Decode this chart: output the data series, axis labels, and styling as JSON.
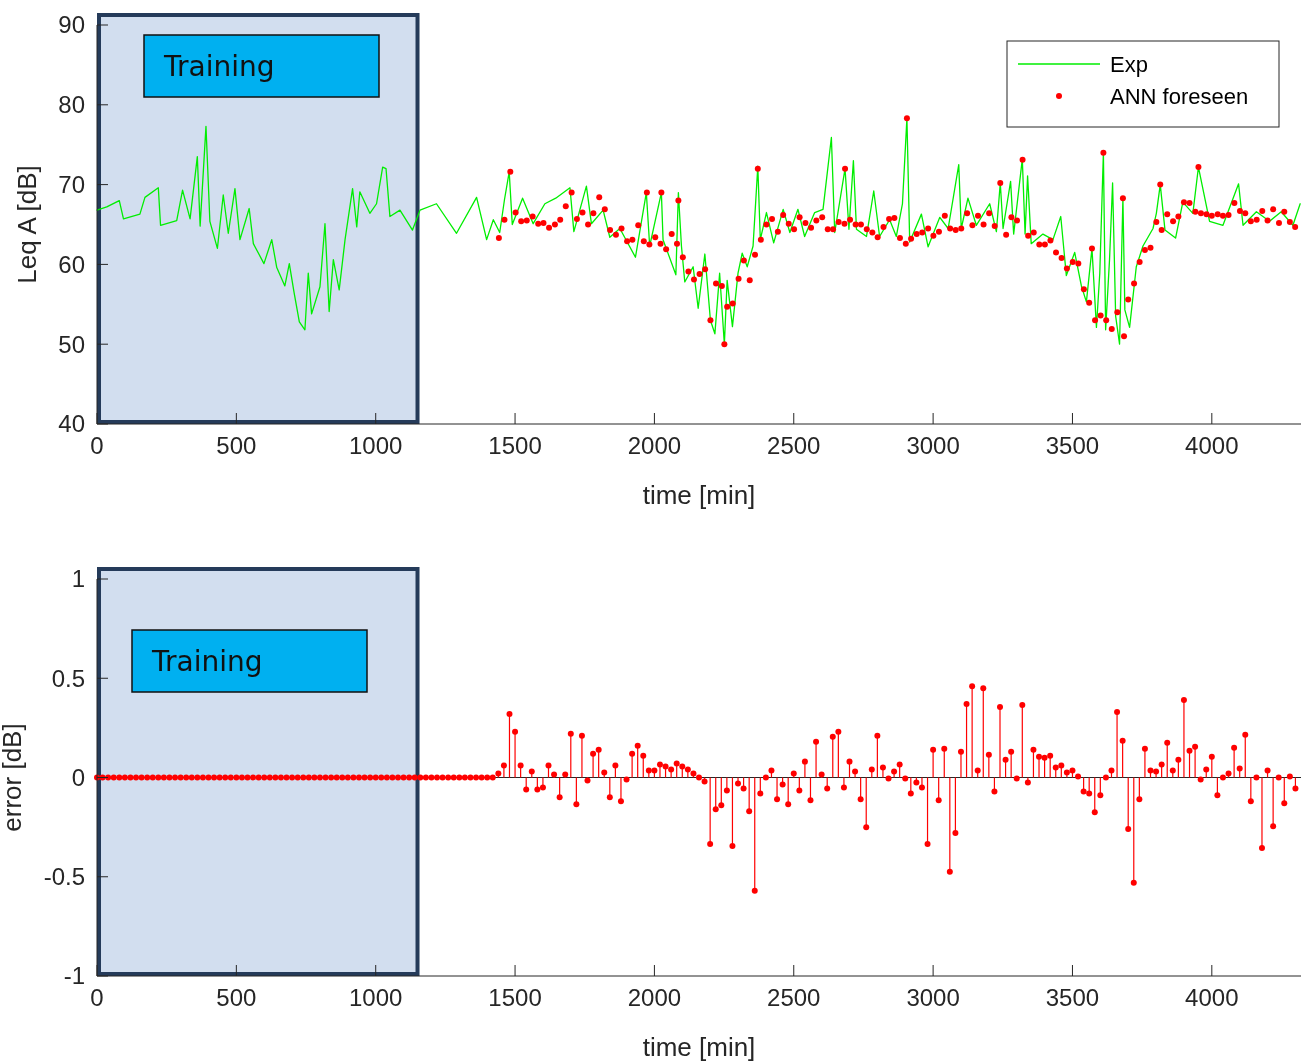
{
  "chart_data": [
    {
      "type": "line",
      "xlabel": "time [min]",
      "ylabel": "Leq A [dB]",
      "xlim": [
        0,
        4320
      ],
      "ylim": [
        40,
        90
      ],
      "xticks": [
        0,
        500,
        1000,
        1500,
        2000,
        2500,
        3000,
        3500,
        4000
      ],
      "yticks": [
        40,
        50,
        60,
        70,
        80,
        90
      ],
      "legend": "top right",
      "bands": [
        {
          "axis": "x",
          "from": 0,
          "to": 1150,
          "label": "Training",
          "color": "#d2deef"
        }
      ],
      "series": [
        {
          "name": "Exp",
          "color": "#00ee00",
          "x": [
            0,
            35,
            80,
            95,
            154,
            172,
            220,
            228,
            286,
            307,
            334,
            360,
            370,
            391,
            405,
            432,
            453,
            471,
            495,
            513,
            546,
            561,
            599,
            627,
            645,
            674,
            690,
            707,
            726,
            746,
            758,
            770,
            800,
            818,
            833,
            848,
            869,
            890,
            917,
            932,
            943,
            979,
            1003,
            1025,
            1037,
            1051,
            1087,
            1132,
            1159,
            1218,
            1290,
            1362,
            1398,
            1422,
            1445,
            1462,
            1479,
            1490,
            1527,
            1565,
            1607,
            1646,
            1697,
            1711,
            1756,
            1774,
            1816,
            1840,
            1876,
            1932,
            1971,
            1983,
            2025,
            2031,
            2077,
            2086,
            2097,
            2109,
            2139,
            2157,
            2181,
            2201,
            2217,
            2234,
            2251,
            2261,
            2280,
            2300,
            2315,
            2333,
            2354,
            2371,
            2380,
            2402,
            2428,
            2462,
            2486,
            2515,
            2539,
            2575,
            2605,
            2635,
            2647,
            2684,
            2698,
            2714,
            2725,
            2761,
            2787,
            2808,
            2844,
            2868,
            2890,
            2906,
            2916,
            2958,
            2982,
            3024,
            3054,
            3092,
            3101,
            3125,
            3155,
            3203,
            3227,
            3241,
            3251,
            3278,
            3289,
            3320,
            3330,
            3339,
            3352,
            3394,
            3430,
            3458,
            3478,
            3508,
            3532,
            3550,
            3570,
            3586,
            3598,
            3611,
            3619,
            3633,
            3644,
            3655,
            3669,
            3681,
            3688,
            3705,
            3729,
            3753,
            3789,
            3801,
            3815,
            3832,
            3870,
            3896,
            3932,
            3952,
            3992,
            4040,
            4096,
            4112,
            4160,
            4207,
            4249,
            4291,
            4317
          ],
          "values": [
            66.8,
            67.2,
            68.0,
            65.7,
            66.3,
            68.4,
            69.6,
            64.9,
            65.5,
            69.3,
            65.7,
            73.5,
            64.8,
            77.3,
            65.4,
            62.0,
            68.7,
            63.9,
            69.5,
            63.1,
            67.0,
            62.6,
            60.1,
            63.1,
            59.6,
            57.3,
            60.1,
            56.5,
            52.8,
            51.8,
            58.9,
            53.8,
            57.2,
            65.1,
            54.1,
            60.6,
            56.8,
            63.1,
            69.5,
            64.7,
            69.1,
            66.4,
            67.6,
            72.2,
            72.0,
            66.0,
            66.8,
            64.3,
            66.8,
            67.6,
            63.9,
            68.4,
            63.1,
            65.6,
            64.0,
            68.1,
            71.6,
            65.0,
            68.3,
            65.1,
            67.6,
            68.3,
            69.6,
            64.1,
            69.8,
            65.1,
            66.8,
            63.4,
            64.5,
            60.9,
            69.0,
            62.3,
            69.0,
            63.1,
            58.7,
            69.0,
            62.3,
            57.8,
            59.7,
            54.5,
            61.3,
            53.0,
            51.3,
            58.9,
            50.0,
            58.0,
            52.2,
            58.9,
            61.4,
            59.7,
            62.3,
            72.3,
            63.1,
            66.5,
            62.7,
            66.9,
            64.0,
            66.9,
            63.5,
            66.5,
            66.9,
            75.9,
            64.0,
            72.0,
            64.4,
            73.0,
            64.4,
            63.5,
            69.2,
            63.5,
            65.6,
            63.5,
            67.6,
            78.3,
            62.8,
            66.3,
            62.2,
            65.9,
            64.5,
            72.5,
            64.5,
            68.3,
            64.9,
            67.6,
            64.1,
            70.2,
            64.5,
            70.4,
            63.8,
            73.2,
            63.8,
            71.1,
            62.6,
            63.8,
            63.1,
            66.0,
            58.6,
            61.5,
            57.3,
            55.3,
            62.0,
            52.1,
            58.9,
            74.0,
            51.8,
            60.6,
            70.2,
            53.5,
            50.0,
            68.3,
            54.3,
            52.1,
            59.7,
            62.3,
            64.5,
            66.4,
            70.0,
            64.3,
            63.3,
            67.8,
            66.4,
            72.2,
            65.4,
            64.9,
            70.1,
            64.9,
            66.6,
            65.4,
            66.6,
            64.9,
            67.6
          ]
        },
        {
          "name": "ANN foreseen",
          "type": "scatter",
          "marker": "circle",
          "color": "#ff0000",
          "x": [
            1442,
            1462,
            1483,
            1502,
            1522,
            1542,
            1563,
            1583,
            1602,
            1622,
            1643,
            1662,
            1682,
            1703,
            1722,
            1742,
            1762,
            1781,
            1802,
            1822,
            1841,
            1862,
            1882,
            1902,
            1921,
            1942,
            1962,
            1973,
            1982,
            2003,
            2022,
            2025,
            2042,
            2062,
            2081,
            2086,
            2102,
            2122,
            2142,
            2162,
            2182,
            2201,
            2221,
            2242,
            2251,
            2261,
            2281,
            2302,
            2321,
            2342,
            2361,
            2371,
            2382,
            2402,
            2422,
            2443,
            2462,
            2482,
            2501,
            2521,
            2542,
            2562,
            2581,
            2602,
            2622,
            2641,
            2661,
            2682,
            2684,
            2702,
            2722,
            2741,
            2762,
            2782,
            2801,
            2822,
            2842,
            2861,
            2881,
            2902,
            2906,
            2921,
            2941,
            2961,
            2982,
            3001,
            3021,
            3042,
            3061,
            3081,
            3101,
            3122,
            3141,
            3161,
            3181,
            3201,
            3221,
            3241,
            3262,
            3281,
            3301,
            3321,
            3341,
            3361,
            3381,
            3401,
            3421,
            3441,
            3461,
            3480,
            3501,
            3521,
            3541,
            3560,
            3570,
            3581,
            3601,
            3611,
            3621,
            3641,
            3661,
            3681,
            3685,
            3700,
            3721,
            3741,
            3760,
            3780,
            3801,
            3815,
            3820,
            3840,
            3861,
            3880,
            3900,
            3920,
            3941,
            3952,
            3961,
            3981,
            4000,
            4021,
            4040,
            4060,
            4081,
            4101,
            4120,
            4140,
            4161,
            4181,
            4200,
            4220,
            4241,
            4260,
            4280,
            4299
          ],
          "values": [
            63.3,
            65.6,
            71.6,
            66.5,
            65.4,
            65.5,
            66.0,
            65.1,
            65.2,
            64.6,
            65.0,
            65.6,
            67.3,
            69.0,
            65.7,
            66.5,
            65.0,
            66.4,
            68.4,
            66.9,
            64.3,
            63.7,
            64.5,
            62.9,
            63.1,
            64.9,
            62.9,
            69.0,
            62.5,
            63.4,
            62.6,
            69.0,
            61.9,
            63.8,
            62.6,
            68.0,
            60.9,
            59.1,
            58.1,
            58.8,
            59.4,
            53.0,
            57.6,
            57.3,
            50.0,
            54.7,
            55.1,
            58.2,
            60.5,
            58.0,
            61.2,
            72.0,
            63.1,
            65.0,
            65.7,
            64.1,
            66.2,
            65.1,
            64.4,
            65.9,
            65.2,
            64.6,
            65.5,
            65.9,
            64.4,
            64.4,
            65.3,
            65.1,
            72.0,
            65.6,
            65.0,
            65.0,
            64.4,
            64.0,
            63.4,
            64.7,
            65.7,
            65.8,
            63.3,
            62.6,
            78.3,
            63.2,
            63.8,
            64.0,
            64.5,
            63.6,
            64.1,
            66.1,
            64.5,
            64.3,
            64.5,
            66.4,
            64.9,
            66.1,
            65.0,
            66.4,
            64.8,
            70.2,
            63.7,
            65.9,
            65.5,
            73.1,
            63.6,
            64.0,
            62.5,
            62.5,
            63.0,
            61.5,
            60.8,
            59.5,
            60.3,
            60.1,
            56.9,
            55.2,
            62.0,
            53.0,
            53.6,
            74.0,
            53.0,
            51.9,
            54.0,
            68.3,
            51.0,
            55.6,
            57.6,
            60.3,
            61.8,
            62.1,
            65.3,
            70.0,
            64.3,
            66.3,
            65.4,
            66.0,
            67.8,
            67.7,
            66.6,
            72.2,
            66.4,
            66.3,
            66.1,
            66.3,
            66.1,
            66.2,
            67.7,
            66.7,
            66.4,
            65.4,
            65.6,
            66.7,
            65.5,
            66.9,
            65.2,
            66.6,
            65.3,
            64.7
          ]
        }
      ]
    },
    {
      "type": "lollipop",
      "xlabel": "time [min]",
      "ylabel": "error [dB]",
      "xlim": [
        0,
        4320
      ],
      "ylim": [
        -1,
        1
      ],
      "xticks": [
        0,
        500,
        1000,
        1500,
        2000,
        2500,
        3000,
        3500,
        4000
      ],
      "yticks": [
        -1,
        -0.5,
        0,
        0.5,
        1
      ],
      "marker": "circle",
      "bands": [
        {
          "axis": "x",
          "from": 0,
          "to": 1150,
          "label": "Training",
          "color": "#d2deef"
        }
      ],
      "series": [
        {
          "color": "#ff0000",
          "x": [
            0,
            20,
            40,
            60,
            80,
            100,
            120,
            140,
            160,
            180,
            200,
            220,
            240,
            260,
            280,
            300,
            320,
            340,
            360,
            380,
            400,
            420,
            440,
            460,
            480,
            500,
            520,
            540,
            560,
            580,
            600,
            620,
            640,
            660,
            680,
            700,
            720,
            740,
            760,
            780,
            800,
            820,
            840,
            860,
            880,
            900,
            920,
            940,
            960,
            980,
            1000,
            1020,
            1040,
            1060,
            1080,
            1100,
            1120,
            1140,
            1160,
            1180,
            1200,
            1220,
            1240,
            1260,
            1280,
            1300,
            1320,
            1340,
            1360,
            1380,
            1400,
            1420,
            1440,
            1460,
            1480,
            1500,
            1520,
            1540,
            1560,
            1580,
            1600,
            1620,
            1640,
            1660,
            1680,
            1700,
            1720,
            1740,
            1760,
            1780,
            1800,
            1820,
            1840,
            1860,
            1880,
            1900,
            1920,
            1940,
            1960,
            1980,
            2000,
            2020,
            2040,
            2060,
            2080,
            2100,
            2120,
            2140,
            2160,
            2180,
            2200,
            2220,
            2240,
            2260,
            2280,
            2300,
            2320,
            2340,
            2360,
            2380,
            2400,
            2420,
            2440,
            2460,
            2480,
            2500,
            2520,
            2540,
            2560,
            2580,
            2600,
            2620,
            2640,
            2660,
            2680,
            2700,
            2720,
            2740,
            2760,
            2780,
            2800,
            2820,
            2840,
            2860,
            2880,
            2900,
            2920,
            2940,
            2960,
            2980,
            3000,
            3020,
            3040,
            3060,
            3080,
            3100,
            3120,
            3140,
            3160,
            3180,
            3200,
            3220,
            3240,
            3260,
            3280,
            3300,
            3320,
            3340,
            3360,
            3380,
            3400,
            3420,
            3440,
            3460,
            3480,
            3500,
            3520,
            3540,
            3560,
            3580,
            3600,
            3620,
            3640,
            3660,
            3680,
            3700,
            3720,
            3740,
            3760,
            3780,
            3800,
            3820,
            3840,
            3860,
            3880,
            3900,
            3920,
            3940,
            3960,
            3980,
            4000,
            4020,
            4040,
            4060,
            4080,
            4100,
            4120,
            4140,
            4160,
            4180,
            4200,
            4220,
            4240,
            4260,
            4280,
            4300
          ],
          "values": [
            0,
            0,
            0,
            0,
            0,
            0,
            0,
            0,
            0,
            0,
            0,
            0,
            0,
            0,
            0,
            0,
            0,
            0,
            0,
            0,
            0,
            0,
            0,
            0,
            0,
            0,
            0,
            0,
            0,
            0,
            0,
            0,
            0,
            0,
            0,
            0,
            0,
            0,
            0,
            0,
            0,
            0,
            0,
            0,
            0,
            0,
            0,
            0,
            0,
            0,
            0,
            0,
            0,
            0,
            0,
            0,
            0,
            0,
            0,
            0,
            0,
            0,
            0,
            0,
            0,
            0,
            0,
            0,
            0,
            0,
            0,
            0,
            0.02,
            0.06,
            0.32,
            0.23,
            0.06,
            -0.06,
            0.03,
            -0.06,
            -0.05,
            0.06,
            0.015,
            -0.1,
            0.015,
            0.22,
            -0.135,
            0.21,
            -0.015,
            0.12,
            0.14,
            0.025,
            -0.1,
            0.06,
            -0.12,
            -0.01,
            0.12,
            0.16,
            0.11,
            0.035,
            0.035,
            0.065,
            0.055,
            0.04,
            0.07,
            0.055,
            0.04,
            0.02,
            0,
            -0.02,
            -0.335,
            -0.16,
            -0.14,
            -0.065,
            -0.345,
            -0.03,
            -0.055,
            -0.17,
            -0.57,
            -0.08,
            0,
            0.035,
            -0.11,
            -0.035,
            -0.135,
            0.02,
            -0.065,
            0.08,
            -0.115,
            0.18,
            0.015,
            -0.055,
            0.205,
            0.23,
            -0.05,
            0.08,
            0.03,
            -0.11,
            -0.25,
            0.04,
            0.21,
            0.05,
            -0.005,
            0.03,
            0.065,
            -0.005,
            -0.08,
            -0.025,
            -0.05,
            -0.335,
            0.14,
            -0.115,
            0.145,
            -0.475,
            -0.28,
            0.13,
            0.37,
            0.46,
            0.035,
            0.45,
            0.115,
            -0.07,
            0.355,
            0.09,
            0.13,
            -0.005,
            0.365,
            -0.025,
            0.14,
            0.105,
            0.1,
            0.11,
            0.05,
            0.06,
            0.025,
            0.035,
            0.005,
            -0.07,
            -0.08,
            -0.175,
            -0.09,
            0,
            0.035,
            0.33,
            0.185,
            -0.26,
            -0.53,
            -0.11,
            0.145,
            0.035,
            0.03,
            0.065,
            0.175,
            0.035,
            0.09,
            0.39,
            0.135,
            0.155,
            -0.01,
            0.04,
            0.105,
            -0.09,
            0,
            0.02,
            0.15,
            0.045,
            0.215,
            -0.12,
            0,
            -0.355,
            0.035,
            -0.245,
            0,
            -0.13,
            0.005,
            -0.055
          ]
        }
      ]
    }
  ]
}
